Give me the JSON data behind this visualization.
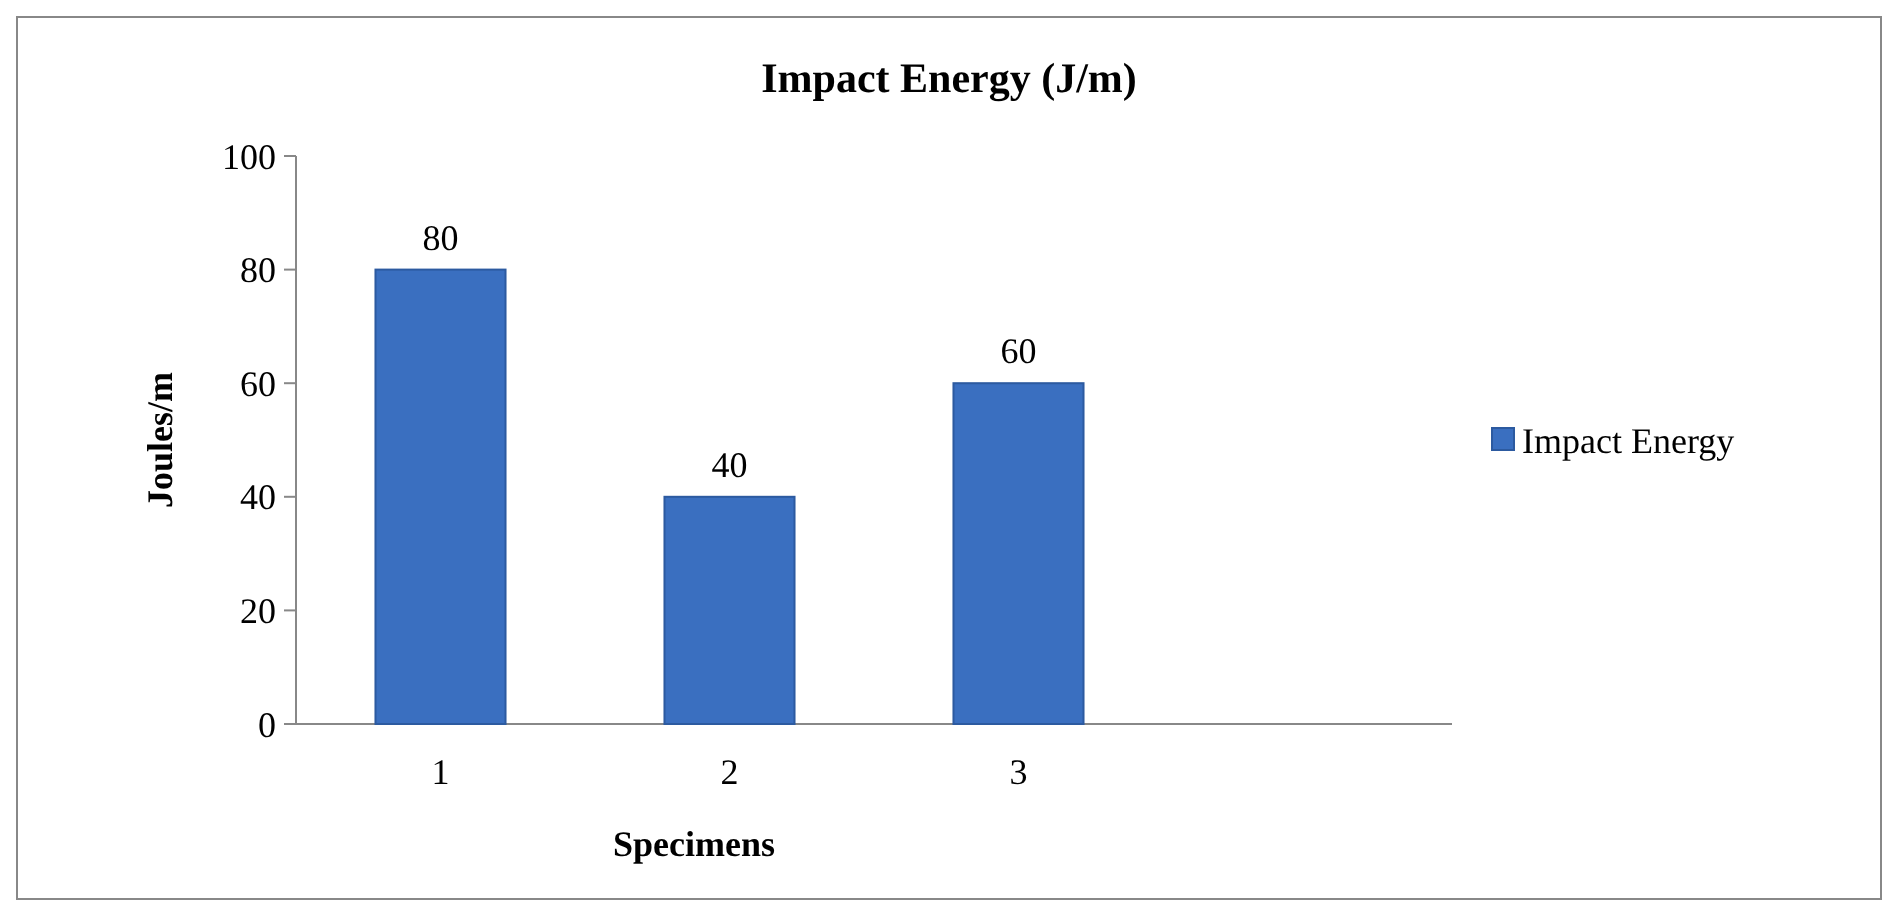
{
  "chart_data": {
    "type": "bar",
    "title": "Impact Energy (J/m)",
    "xlabel": "Specimens",
    "ylabel": "Joules/m",
    "categories": [
      "1",
      "2",
      "3",
      null
    ],
    "series": [
      {
        "name": "Impact Energy",
        "color": "#3a6fc0",
        "values": [
          80,
          40,
          60,
          null
        ]
      }
    ],
    "ylim": [
      0,
      100
    ],
    "yticks": [
      0,
      20,
      40,
      60,
      80,
      100
    ],
    "data_labels": true,
    "legend": "right",
    "grid": false
  }
}
